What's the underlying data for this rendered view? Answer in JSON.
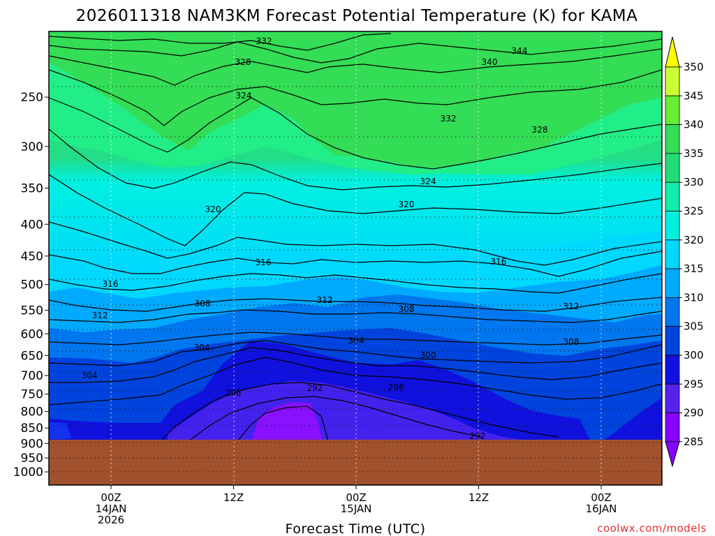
{
  "chart_data": {
    "type": "contour",
    "title": "2026011318 NAM3KM Forecast Potential Temperature (K) for KAMA",
    "xlabel": "Forecast Time (UTC)",
    "ylabel": "",
    "credit": "coolwx.com/models",
    "y_ticks": [
      "250",
      "300",
      "350",
      "400",
      "450",
      "500",
      "550",
      "600",
      "650",
      "700",
      "750",
      "800",
      "850",
      "900",
      "950",
      "1000"
    ],
    "x_ticks": [
      {
        "line1": "00Z",
        "line2": "14JAN",
        "line3": "2026"
      },
      {
        "line1": "12Z",
        "line2": "",
        "line3": ""
      },
      {
        "line1": "00Z",
        "line2": "15JAN",
        "line3": ""
      },
      {
        "line1": "12Z",
        "line2": "",
        "line3": ""
      },
      {
        "line1": "00Z",
        "line2": "16JAN",
        "line3": ""
      }
    ],
    "colorbar": {
      "levels": [
        "350",
        "345",
        "340",
        "335",
        "330",
        "325",
        "320",
        "315",
        "310",
        "305",
        "300",
        "295",
        "290",
        "285"
      ],
      "colors": [
        "#ffff00",
        "#ccff33",
        "#66ee33",
        "#33dd55",
        "#22dd77",
        "#11eeaa",
        "#00f0e0",
        "#00d8ff",
        "#00aaff",
        "#0077ee",
        "#0044dd",
        "#1111dd",
        "#5522ee",
        "#8800ff"
      ]
    },
    "contour_labels": [
      {
        "text": "332"
      },
      {
        "text": "328"
      },
      {
        "text": "324"
      },
      {
        "text": "344"
      },
      {
        "text": "340"
      },
      {
        "text": "332"
      },
      {
        "text": "328"
      },
      {
        "text": "324"
      },
      {
        "text": "320"
      },
      {
        "text": "320"
      },
      {
        "text": "316"
      },
      {
        "text": "316"
      },
      {
        "text": "316"
      },
      {
        "text": "312"
      },
      {
        "text": "312"
      },
      {
        "text": "312"
      },
      {
        "text": "308"
      },
      {
        "text": "308"
      },
      {
        "text": "308"
      },
      {
        "text": "304"
      },
      {
        "text": "304"
      },
      {
        "text": "304"
      },
      {
        "text": "300"
      },
      {
        "text": "296"
      },
      {
        "text": "296"
      },
      {
        "text": "292"
      },
      {
        "text": "292"
      }
    ],
    "ground_color": "#a0522d"
  }
}
